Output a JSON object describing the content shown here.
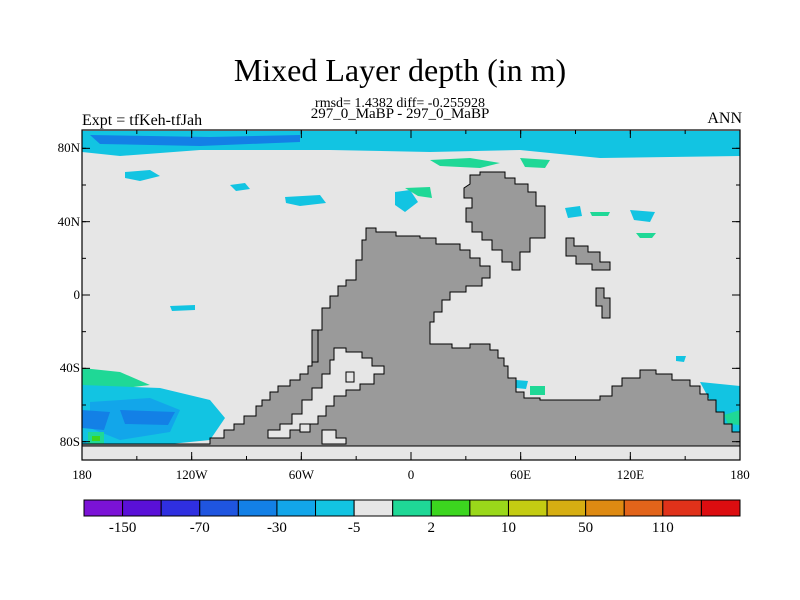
{
  "title": "Mixed Layer depth (in m)",
  "stats_line": "rmsd= 1.4382 diff= -0.255928",
  "subtitle": "297_0_MaBP - 297_0_MaBP",
  "left_label": "Expt = tfKeh-tfJah",
  "right_label": "ANN",
  "map": {
    "projection": "cylindrical-equidistant",
    "lon_range": [
      -180,
      180
    ],
    "lat_range": [
      -90,
      90
    ],
    "land_color": "#9a9a9a",
    "ocean_color": "#e6e6e6",
    "lat_ticks": [
      {
        "value": 80,
        "label": "80N"
      },
      {
        "value": 40,
        "label": "40N"
      },
      {
        "value": 0,
        "label": "0"
      },
      {
        "value": -40,
        "label": "40S"
      },
      {
        "value": -80,
        "label": "80S"
      }
    ],
    "lon_ticks": [
      {
        "value": -180,
        "label": "180"
      },
      {
        "value": -120,
        "label": "120W"
      },
      {
        "value": -60,
        "label": "60W"
      },
      {
        "value": 0,
        "label": "0"
      },
      {
        "value": 60,
        "label": "60E"
      },
      {
        "value": 120,
        "label": "120E"
      },
      {
        "value": 180,
        "label": "180"
      }
    ]
  },
  "colorbar": {
    "colors": [
      "#7b12d6",
      "#5a10d8",
      "#2f2fe0",
      "#1f55e0",
      "#1380e6",
      "#12a6ea",
      "#12c4e2",
      "#e6e6e6",
      "#1fd896",
      "#3cd61f",
      "#9ad81a",
      "#c4cc12",
      "#d6ae12",
      "#de8a12",
      "#e2641a",
      "#e0321a",
      "#dc0d10"
    ],
    "labels": [
      "-150",
      "-70",
      "-30",
      "-5",
      "2",
      "10",
      "50",
      "110"
    ]
  }
}
